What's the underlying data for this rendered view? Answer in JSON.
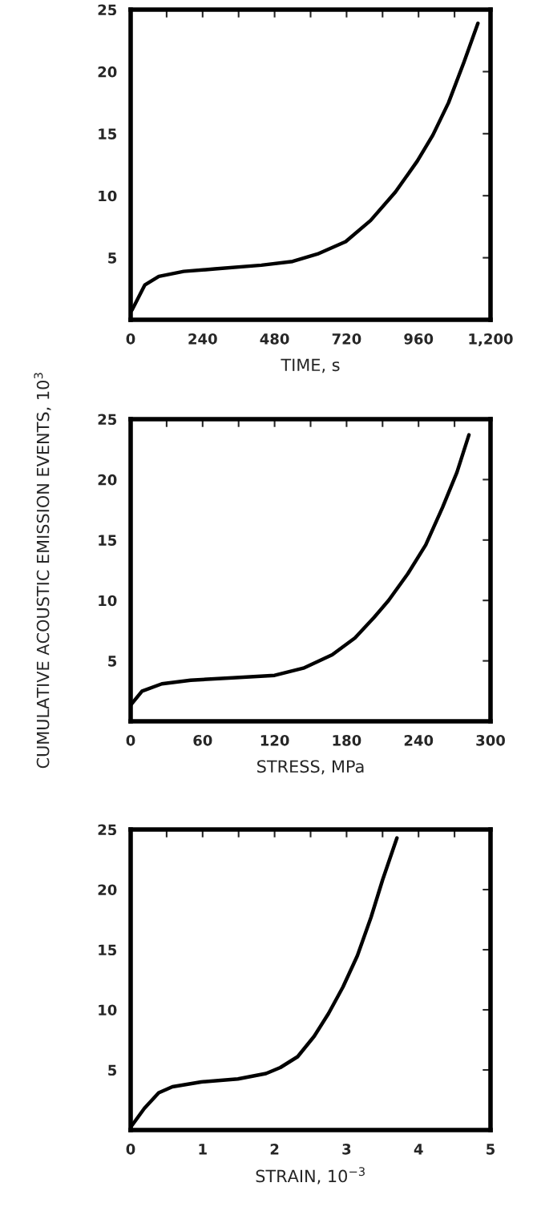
{
  "chart_data": [
    {
      "type": "line",
      "xlabel": "TIME, s",
      "xlim": [
        0,
        1200
      ],
      "ylim": [
        0,
        25
      ],
      "xticks": [
        0,
        {
          "value": 120,
          "label": null
        },
        240,
        {
          "value": 360,
          "label": null
        },
        480,
        {
          "value": 600,
          "label": null
        },
        720,
        {
          "value": 840,
          "label": null
        },
        960,
        {
          "value": 1080,
          "label": null
        },
        {
          "value": 1200,
          "label": "1,200"
        }
      ],
      "yticks": [
        5,
        10,
        15,
        20,
        25
      ],
      "grid": false,
      "legend": false,
      "series": [
        {
          "color": "#000000",
          "x": [
            0,
            5,
            47,
            94,
            177,
            281,
            436,
            540,
            623,
            717,
            800,
            883,
            956,
            1008,
            1060,
            1112,
            1158
          ],
          "values": [
            0.66,
            0.8,
            2.8,
            3.5,
            3.9,
            4.1,
            4.4,
            4.7,
            5.3,
            6.3,
            8.0,
            10.3,
            12.8,
            14.9,
            17.5,
            20.8,
            23.9
          ]
        }
      ]
    },
    {
      "type": "line",
      "xlabel": "STRESS, MPa",
      "ylabel": "CUMULATIVE ACOUSTIC EMISSION EVENTS, 10$^{3}$",
      "xlim": [
        0,
        300
      ],
      "ylim": [
        0,
        25
      ],
      "xticks": [
        0,
        {
          "value": 30,
          "label": null
        },
        60,
        {
          "value": 90,
          "label": null
        },
        120,
        {
          "value": 150,
          "label": null
        },
        180,
        {
          "value": 210,
          "label": null
        },
        240,
        {
          "value": 270,
          "label": null
        },
        300
      ],
      "yticks": [
        5,
        10,
        15,
        20,
        25
      ],
      "grid": false,
      "legend": false,
      "series": [
        {
          "color": "#000000",
          "x": [
            0.5,
            9.5,
            26,
            50,
            85,
            120,
            144,
            168,
            187,
            203,
            215,
            231,
            246,
            260,
            272,
            282
          ],
          "values": [
            1.4,
            2.5,
            3.1,
            3.4,
            3.6,
            3.8,
            4.4,
            5.5,
            6.9,
            8.6,
            10.0,
            12.2,
            14.6,
            17.7,
            20.6,
            23.7
          ]
        }
      ]
    },
    {
      "type": "line",
      "xlabel": "STRAIN, 10$^{−3}$",
      "xlim": [
        0,
        5
      ],
      "ylim": [
        0,
        25
      ],
      "xticks": [
        0,
        {
          "value": 0.5,
          "label": null
        },
        1,
        {
          "value": 1.5,
          "label": null
        },
        2,
        {
          "value": 2.5,
          "label": null
        },
        3,
        {
          "value": 3.5,
          "label": null
        },
        4,
        {
          "value": 4.5,
          "label": null
        },
        5
      ],
      "yticks": [
        5,
        10,
        15,
        20,
        25
      ],
      "grid": false,
      "legend": false,
      "series": [
        {
          "color": "#000000",
          "x": [
            0,
            0.19,
            0.39,
            0.58,
            0.98,
            1.49,
            1.88,
            2.08,
            2.32,
            2.55,
            2.75,
            2.95,
            3.15,
            3.34,
            3.5,
            3.7
          ],
          "values": [
            0.24,
            1.8,
            3.1,
            3.6,
            4.0,
            4.25,
            4.7,
            5.2,
            6.1,
            7.8,
            9.7,
            11.9,
            14.5,
            17.7,
            20.8,
            24.3
          ]
        }
      ]
    }
  ]
}
